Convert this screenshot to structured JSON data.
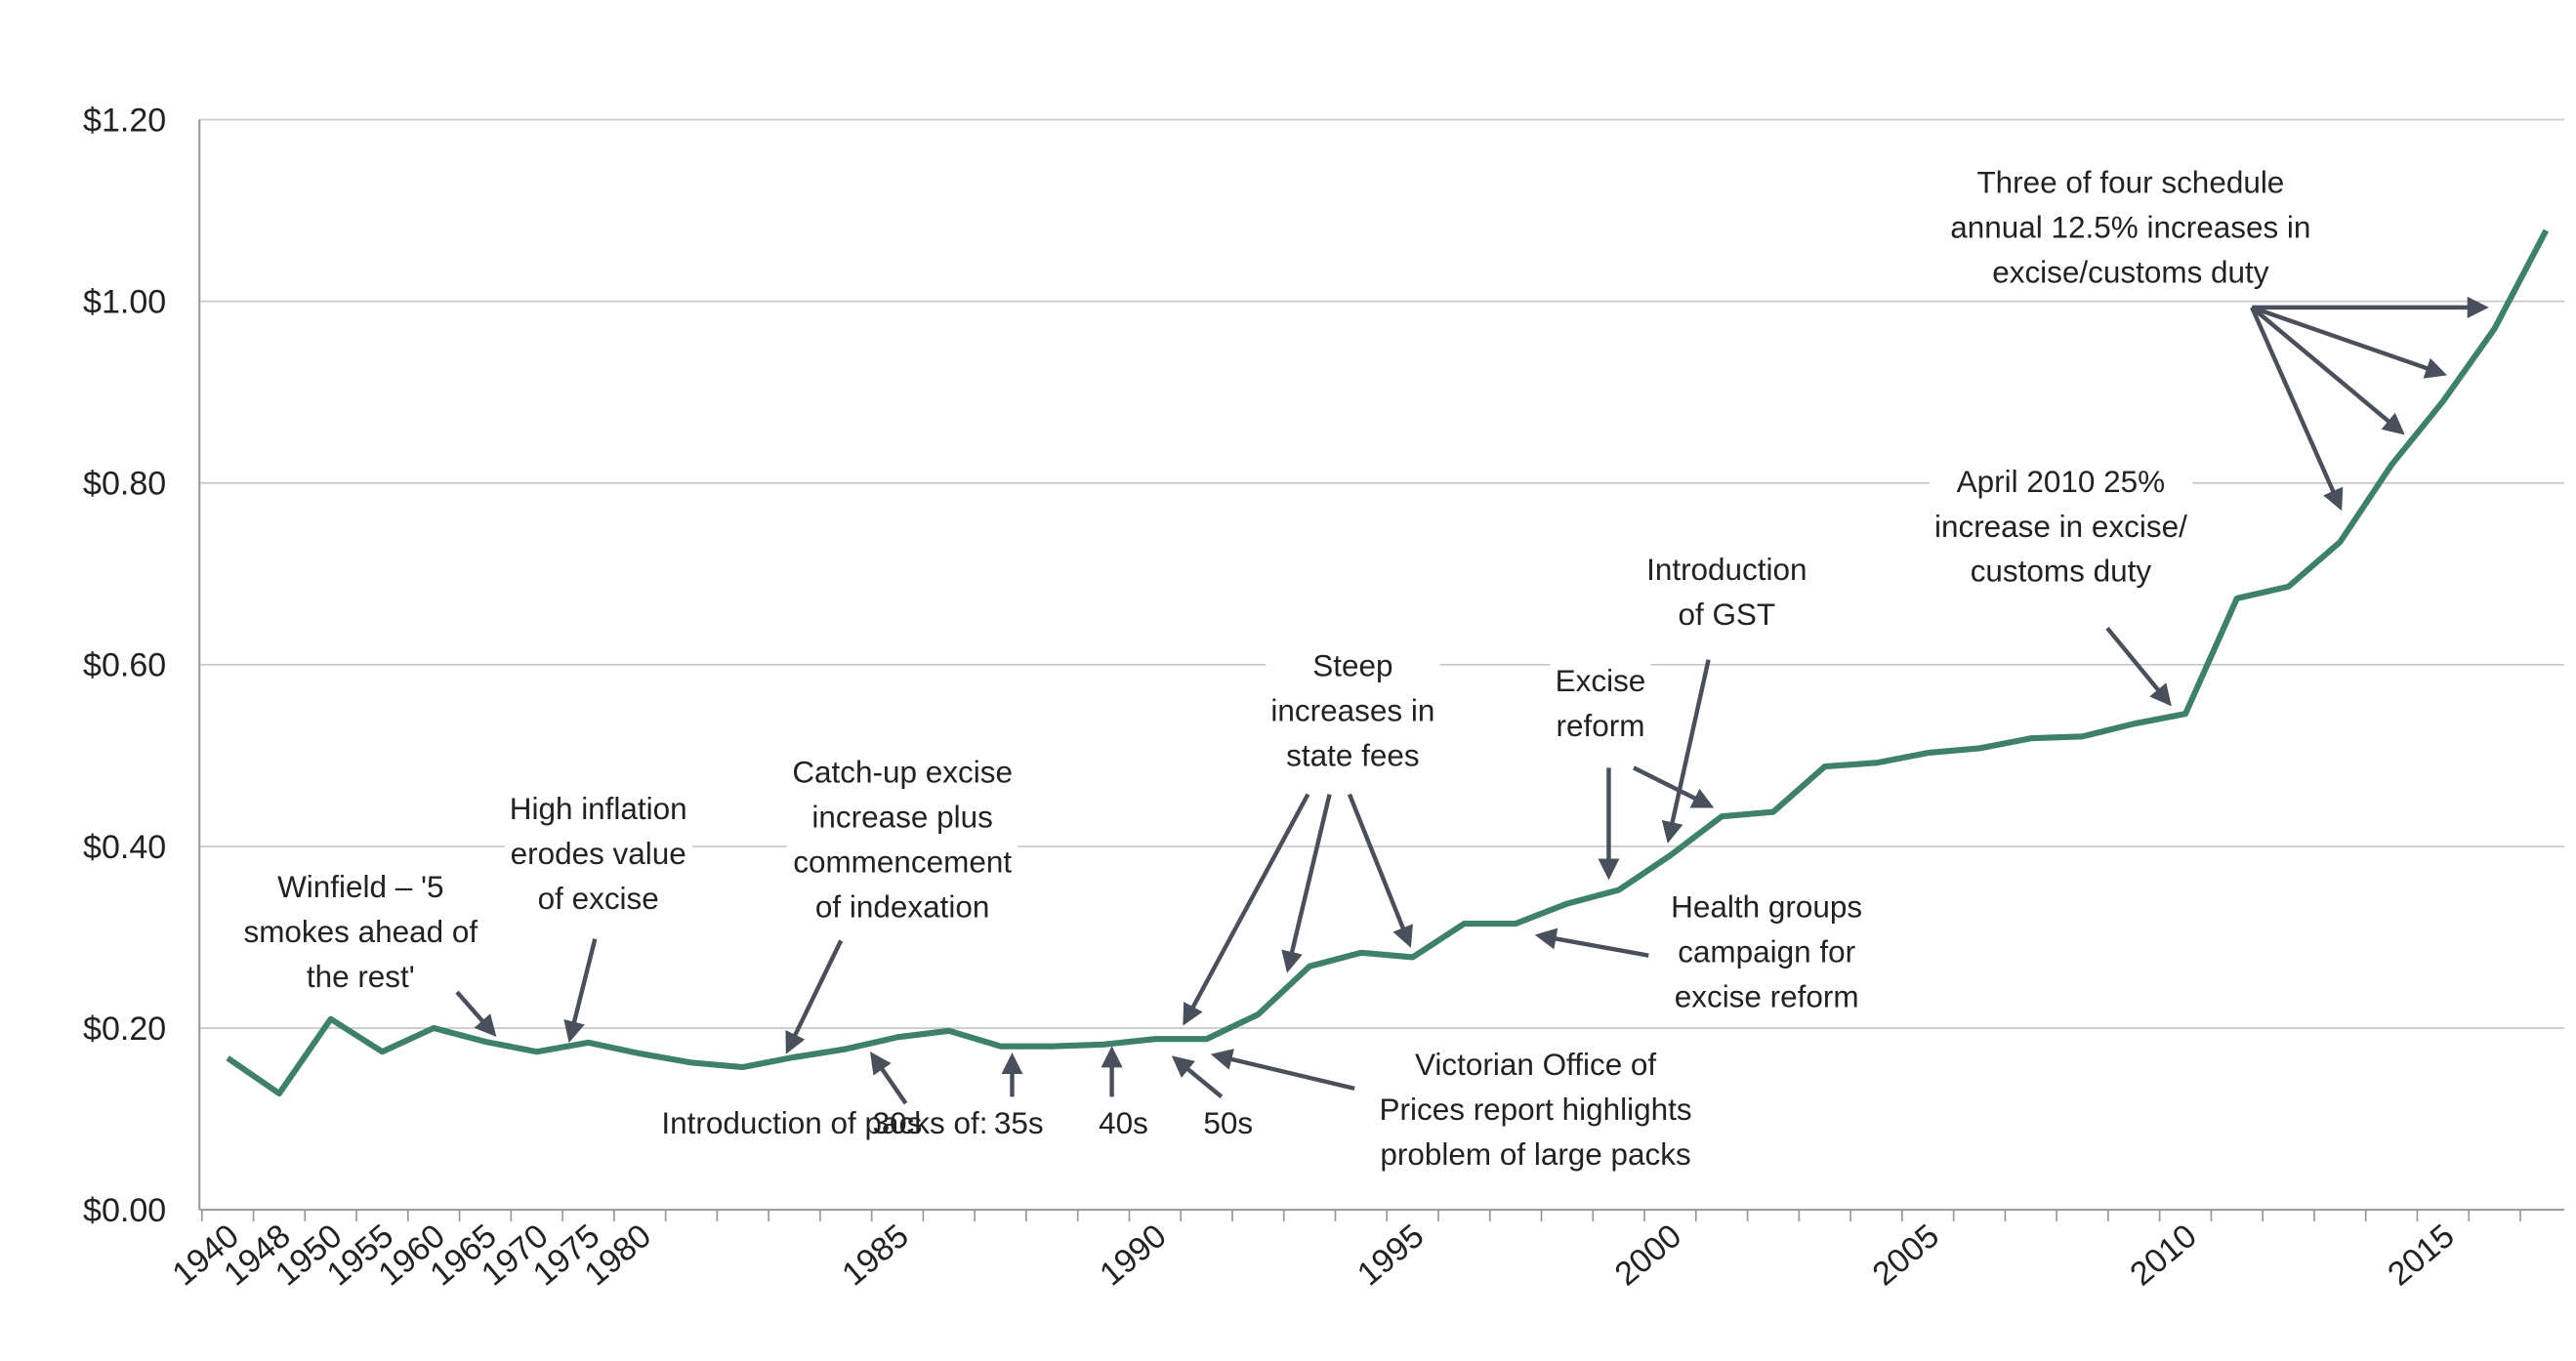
{
  "chart_data": {
    "type": "line",
    "categories": [
      "1940",
      "1948",
      "1950",
      "1955",
      "1960",
      "1965",
      "1970",
      "1975",
      "1980",
      null,
      null,
      null,
      null,
      "1985",
      null,
      null,
      null,
      null,
      "1990",
      null,
      null,
      null,
      null,
      "1995",
      null,
      null,
      null,
      null,
      "2000",
      null,
      null,
      null,
      null,
      "2005",
      null,
      null,
      null,
      null,
      "2010",
      null,
      null,
      null,
      null,
      "2015",
      null,
      null
    ],
    "series": [
      {
        "color": "#3e8068",
        "values": [
          0.167,
          0.128,
          0.21,
          0.174,
          0.2,
          0.185,
          0.174,
          0.184,
          0.172,
          0.162,
          0.157,
          0.168,
          0.177,
          0.19,
          0.197,
          0.18,
          0.18,
          0.182,
          0.188,
          0.188,
          0.215,
          0.268,
          0.283,
          0.278,
          0.315,
          0.315,
          0.337,
          0.352,
          0.39,
          0.433,
          0.438,
          0.488,
          0.492,
          0.503,
          0.508,
          0.519,
          0.521,
          0.535,
          0.546,
          0.673,
          0.686,
          0.735,
          0.82,
          0.89,
          0.97,
          1.078
        ]
      }
    ],
    "ylim": [
      0,
      1.2
    ],
    "yticks": [
      {
        "value": 0,
        "label": "$0.00"
      },
      {
        "value": 0.2,
        "label": "$0.20"
      },
      {
        "value": 0.4,
        "label": "$0.40"
      },
      {
        "value": 0.6,
        "label": "$0.60"
      },
      {
        "value": 0.8,
        "label": "$0.80"
      },
      {
        "value": 1.0,
        "label": "$1.00"
      },
      {
        "value": 1.2,
        "label": "$1.20"
      }
    ],
    "grid": true,
    "annotations": [
      {
        "lines": [
          "Winfield – '5",
          "smokes ahead of",
          "the rest'"
        ]
      },
      {
        "lines": [
          "High inflation",
          "erodes value",
          "of excise"
        ]
      },
      {
        "lines": [
          "Catch-up excise",
          "increase plus",
          "commencement",
          "of indexation"
        ]
      },
      {
        "lines": [
          "Introduction of packs of:"
        ]
      },
      {
        "lines": [
          "30s"
        ]
      },
      {
        "lines": [
          "35s"
        ]
      },
      {
        "lines": [
          "40s"
        ]
      },
      {
        "lines": [
          "50s"
        ]
      },
      {
        "lines": [
          "Steep",
          "increases in",
          "state fees"
        ]
      },
      {
        "lines": [
          "Excise",
          "reform"
        ]
      },
      {
        "lines": [
          "Introduction",
          "of GST"
        ]
      },
      {
        "lines": [
          "Health groups",
          "campaign for",
          "excise reform"
        ]
      },
      {
        "lines": [
          "Victorian Office of",
          "Prices report highlights",
          "problem of large packs"
        ]
      },
      {
        "lines": [
          "April 2010 25%",
          "increase in excise/",
          "customs duty"
        ]
      },
      {
        "lines": [
          "Three of four schedule",
          "annual 12.5% increases in",
          "excise/customs duty"
        ]
      }
    ]
  }
}
